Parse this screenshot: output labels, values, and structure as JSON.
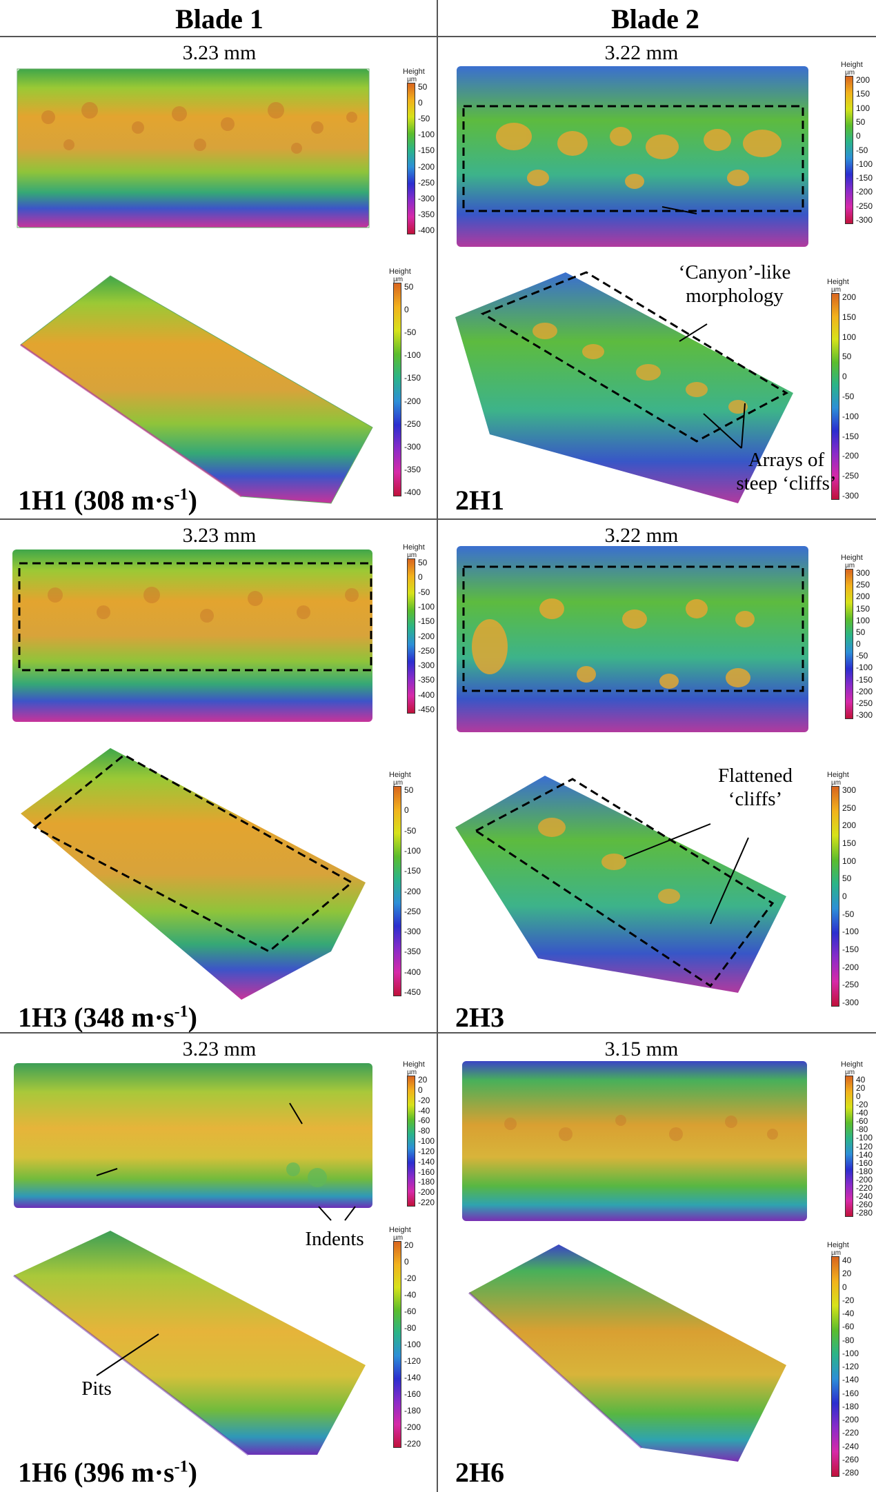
{
  "headers": {
    "blade1": "Blade 1",
    "blade2": "Blade 2"
  },
  "colorbar_title": "Height",
  "colorbar_unit": "µm",
  "rows": [
    {
      "left": {
        "dim": "3.23 mm",
        "label_main": "1H1 (308 m·s",
        "label_sup": "-1",
        "label_end": ")",
        "top_ticks": [
          "50",
          "0",
          "-50",
          "-100",
          "-150",
          "-200",
          "-250",
          "-300",
          "-350",
          "-400"
        ],
        "bottom_ticks": [
          "50",
          "0",
          "-50",
          "-100",
          "-150",
          "-200",
          "-250",
          "-300",
          "-350",
          "-400"
        ]
      },
      "right": {
        "dim": "3.22 mm",
        "label": "2H1",
        "top_ticks": [
          "200",
          "150",
          "100",
          "50",
          "0",
          "-50",
          "-100",
          "-150",
          "-200",
          "-250",
          "-300"
        ],
        "bottom_ticks": [
          "200",
          "150",
          "100",
          "50",
          "0",
          "-50",
          "-100",
          "-150",
          "-200",
          "-250",
          "-300"
        ],
        "annot1": "‘Canyon’-like morphology",
        "annot2": "Arrays of steep ‘cliffs’"
      }
    },
    {
      "left": {
        "dim": "3.23 mm",
        "label_main": "1H3 (348 m·s",
        "label_sup": "-1",
        "label_end": ")",
        "top_ticks": [
          "50",
          "0",
          "-50",
          "-100",
          "-150",
          "-200",
          "-250",
          "-300",
          "-350",
          "-400",
          "-450"
        ],
        "bottom_ticks": [
          "50",
          "0",
          "-50",
          "-100",
          "-150",
          "-200",
          "-250",
          "-300",
          "-350",
          "-400",
          "-450"
        ]
      },
      "right": {
        "dim": "3.22 mm",
        "label": "2H3",
        "top_ticks": [
          "300",
          "250",
          "200",
          "150",
          "100",
          "50",
          "0",
          "-50",
          "-100",
          "-150",
          "-200",
          "-250",
          "-300"
        ],
        "bottom_ticks": [
          "300",
          "250",
          "200",
          "150",
          "100",
          "50",
          "0",
          "-50",
          "-100",
          "-150",
          "-200",
          "-250",
          "-300"
        ],
        "annot1": "Flattened ‘cliffs’"
      }
    },
    {
      "left": {
        "dim": "3.23 mm",
        "label_main": "1H6 (396 m·s",
        "label_sup": "-1",
        "label_end": ")",
        "top_ticks": [
          "20",
          "0",
          "-20",
          "-40",
          "-60",
          "-80",
          "-100",
          "-120",
          "-140",
          "-160",
          "-180",
          "-200",
          "-220"
        ],
        "bottom_ticks": [
          "20",
          "0",
          "-20",
          "-40",
          "-60",
          "-80",
          "-100",
          "-120",
          "-140",
          "-160",
          "-180",
          "-200",
          "-220"
        ],
        "annot1": "Indents",
        "annot2": "Pits"
      },
      "right": {
        "dim": "3.15 mm",
        "label": "2H6",
        "top_ticks": [
          "40",
          "20",
          "0",
          "-20",
          "-40",
          "-60",
          "-80",
          "-100",
          "-120",
          "-140",
          "-160",
          "-180",
          "-200",
          "-220",
          "-240",
          "-260",
          "-280"
        ],
        "bottom_ticks": [
          "40",
          "20",
          "0",
          "-20",
          "-40",
          "-60",
          "-80",
          "-100",
          "-120",
          "-140",
          "-160",
          "-180",
          "-200",
          "-220",
          "-240",
          "-260",
          "-280"
        ]
      }
    }
  ]
}
